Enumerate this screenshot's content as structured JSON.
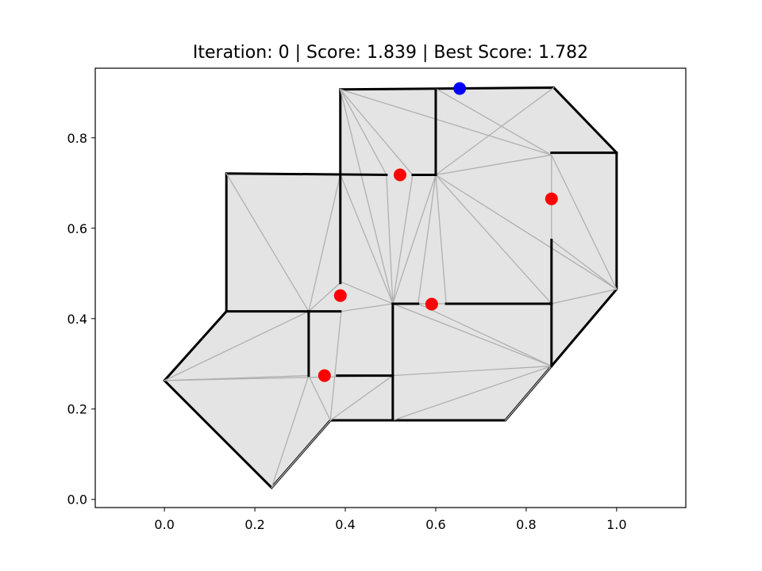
{
  "chart_data": {
    "type": "floorplan",
    "title": "Iteration: 0 | Score: 1.839 | Best Score: 1.782",
    "xlim": [
      -0.153,
      1.153
    ],
    "ylim": [
      -0.018,
      0.954
    ],
    "xticks": [
      {
        "value": 0,
        "label": "0.0"
      },
      {
        "value": 0.2,
        "label": "0.2"
      },
      {
        "value": 0.4,
        "label": "0.4"
      },
      {
        "value": 0.6,
        "label": "0.6"
      },
      {
        "value": 0.8,
        "label": "0.8"
      },
      {
        "value": 1,
        "label": "1.0"
      }
    ],
    "yticks": [
      {
        "value": 0,
        "label": "0.0"
      },
      {
        "value": 0.2,
        "label": "0.2"
      },
      {
        "value": 0.4,
        "label": "0.4"
      },
      {
        "value": 0.6,
        "label": "0.6"
      },
      {
        "value": 0.8,
        "label": "0.8"
      }
    ],
    "outline": {
      "fill": "#e4e4e4",
      "color": "#000000",
      "x": [
        0.389,
        0.861,
        1.0,
        1.0,
        0.856,
        0.754,
        0.367,
        0.237,
        0.0,
        0.137,
        0.137,
        0.389
      ],
      "y": [
        0.907,
        0.911,
        0.767,
        0.465,
        0.295,
        0.175,
        0.175,
        0.026,
        0.263,
        0.416,
        0.721,
        0.719
      ]
    },
    "mesh": {
      "color": "#b0b0b0",
      "edges": [
        {
          "x": [
            0.389,
            0.491
          ],
          "y": [
            0.907,
            0.718
          ]
        },
        {
          "x": [
            0.389,
            0.549
          ],
          "y": [
            0.907,
            0.718
          ]
        },
        {
          "x": [
            0.389,
            0.856
          ],
          "y": [
            0.907,
            0.762
          ]
        },
        {
          "x": [
            0.389,
            0.505
          ],
          "y": [
            0.907,
            0.433
          ]
        },
        {
          "x": [
            0.6,
            0.856
          ],
          "y": [
            0.909,
            0.762
          ]
        },
        {
          "x": [
            0.6,
            0.861
          ],
          "y": [
            0.718,
            0.911
          ]
        },
        {
          "x": [
            0.6,
            0.856
          ],
          "y": [
            0.718,
            0.762
          ]
        },
        {
          "x": [
            0.6,
            1.0
          ],
          "y": [
            0.718,
            0.465
          ]
        },
        {
          "x": [
            0.6,
            0.856
          ],
          "y": [
            0.718,
            0.433
          ]
        },
        {
          "x": [
            0.6,
            0.623
          ],
          "y": [
            0.718,
            0.433
          ]
        },
        {
          "x": [
            0.6,
            0.561
          ],
          "y": [
            0.718,
            0.433
          ]
        },
        {
          "x": [
            0.6,
            0.505
          ],
          "y": [
            0.718,
            0.433
          ]
        },
        {
          "x": [
            0.491,
            0.505
          ],
          "y": [
            0.718,
            0.433
          ]
        },
        {
          "x": [
            0.549,
            0.505
          ],
          "y": [
            0.718,
            0.433
          ]
        },
        {
          "x": [
            0.389,
            0.505
          ],
          "y": [
            0.719,
            0.433
          ]
        },
        {
          "x": [
            0.389,
            0.319
          ],
          "y": [
            0.719,
            0.416
          ]
        },
        {
          "x": [
            0.389,
            0.391
          ],
          "y": [
            0.719,
            0.481
          ]
        },
        {
          "x": [
            0.137,
            0.319
          ],
          "y": [
            0.721,
            0.416
          ]
        },
        {
          "x": [
            0.0,
            0.319
          ],
          "y": [
            0.263,
            0.416
          ]
        },
        {
          "x": [
            0.0,
            0.319
          ],
          "y": [
            0.263,
            0.274
          ]
        },
        {
          "x": [
            0.0,
            0.505
          ],
          "y": [
            0.263,
            0.274
          ]
        },
        {
          "x": [
            0.237,
            0.319
          ],
          "y": [
            0.026,
            0.274
          ]
        },
        {
          "x": [
            0.237,
            0.367
          ],
          "y": [
            0.026,
            0.175
          ]
        },
        {
          "x": [
            0.367,
            0.319
          ],
          "y": [
            0.175,
            0.274
          ]
        },
        {
          "x": [
            0.367,
            0.391
          ],
          "y": [
            0.175,
            0.416
          ]
        },
        {
          "x": [
            0.367,
            0.505
          ],
          "y": [
            0.175,
            0.274
          ]
        },
        {
          "x": [
            0.391,
            0.505
          ],
          "y": [
            0.416,
            0.433
          ]
        },
        {
          "x": [
            0.391,
            0.505
          ],
          "y": [
            0.481,
            0.433
          ]
        },
        {
          "x": [
            0.391,
            0.319
          ],
          "y": [
            0.481,
            0.416
          ]
        },
        {
          "x": [
            0.505,
            0.856
          ],
          "y": [
            0.433,
            0.295
          ]
        },
        {
          "x": [
            0.505,
            0.856
          ],
          "y": [
            0.433,
            0.433
          ]
        },
        {
          "x": [
            0.505,
            0.856
          ],
          "y": [
            0.274,
            0.295
          ]
        },
        {
          "x": [
            0.505,
            0.856
          ],
          "y": [
            0.175,
            0.295
          ]
        },
        {
          "x": [
            0.754,
            0.856
          ],
          "y": [
            0.175,
            0.295
          ]
        },
        {
          "x": [
            0.856,
            1.0
          ],
          "y": [
            0.762,
            0.465
          ]
        },
        {
          "x": [
            0.856,
            1.0
          ],
          "y": [
            0.574,
            0.465
          ]
        },
        {
          "x": [
            0.856,
            0.856
          ],
          "y": [
            0.762,
            0.574
          ]
        },
        {
          "x": [
            0.856,
            1.0
          ],
          "y": [
            0.433,
            0.465
          ]
        },
        {
          "x": [
            0.561,
            0.856
          ],
          "y": [
            0.433,
            0.295
          ]
        }
      ]
    },
    "walls": {
      "color": "#000000",
      "segments": [
        {
          "x": [
            0.389,
            0.389
          ],
          "y": [
            0.719,
            0.479
          ]
        },
        {
          "x": [
            0.389,
            0.491
          ],
          "y": [
            0.719,
            0.718
          ]
        },
        {
          "x": [
            0.549,
            0.6
          ],
          "y": [
            0.718,
            0.718
          ]
        },
        {
          "x": [
            0.6,
            0.6
          ],
          "y": [
            0.907,
            0.718
          ]
        },
        {
          "x": [
            0.856,
            1.0
          ],
          "y": [
            0.767,
            0.767
          ]
        },
        {
          "x": [
            0.856,
            0.856
          ],
          "y": [
            0.574,
            0.295
          ]
        },
        {
          "x": [
            0.623,
            0.856
          ],
          "y": [
            0.433,
            0.433
          ]
        },
        {
          "x": [
            0.505,
            0.561
          ],
          "y": [
            0.433,
            0.433
          ]
        },
        {
          "x": [
            0.505,
            0.505
          ],
          "y": [
            0.433,
            0.175
          ]
        },
        {
          "x": [
            0.137,
            0.389
          ],
          "y": [
            0.416,
            0.416
          ]
        },
        {
          "x": [
            0.319,
            0.319
          ],
          "y": [
            0.416,
            0.274
          ]
        },
        {
          "x": [
            0.382,
            0.505
          ],
          "y": [
            0.274,
            0.274
          ]
        }
      ]
    },
    "series": [
      {
        "color": "#ff0000",
        "x": [
          0.521,
          0.856,
          0.389,
          0.591,
          0.354
        ],
        "values": [
          0.718,
          0.665,
          0.451,
          0.432,
          0.274
        ]
      },
      {
        "color": "#0000ff",
        "x": [
          0.653
        ],
        "values": [
          0.909
        ]
      }
    ]
  }
}
